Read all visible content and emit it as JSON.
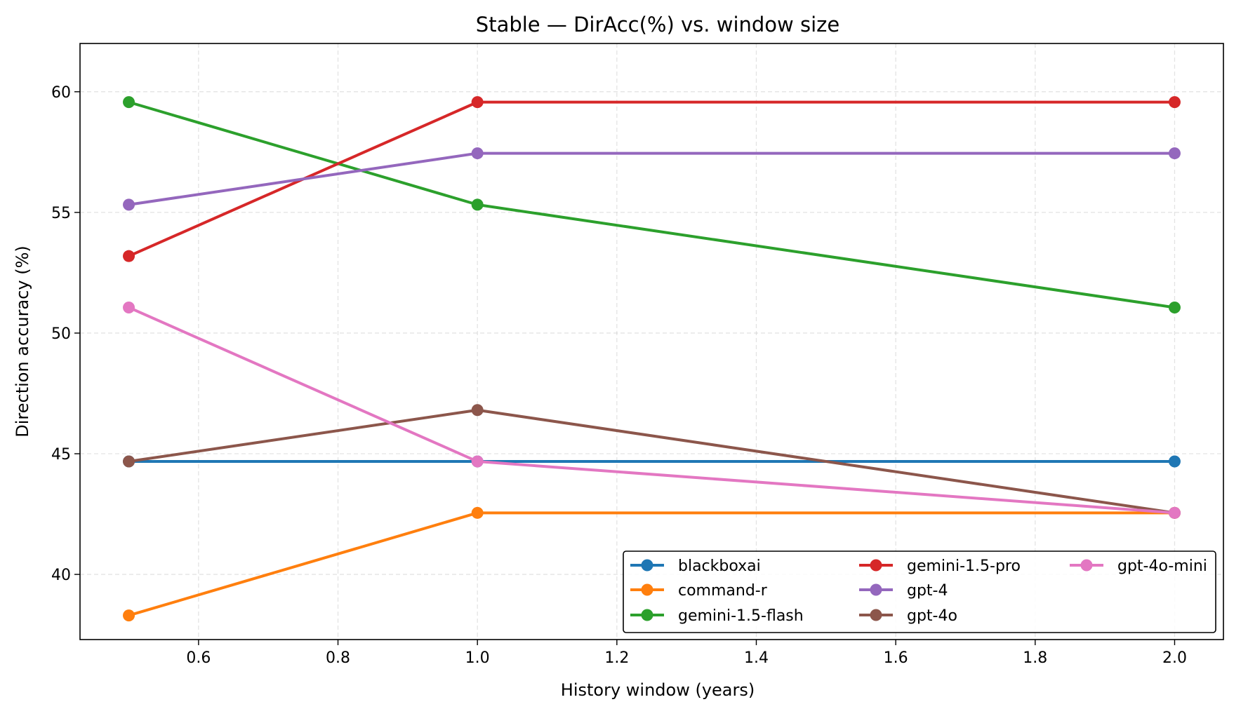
{
  "chart_data": {
    "type": "line",
    "title": "Stable — DirAcc(%) vs. window size",
    "xlabel": "History window (years)",
    "ylabel": "Direction accuracy (%)",
    "x": [
      0.5,
      1.0,
      2.0
    ],
    "xlim": [
      0.43,
      2.07
    ],
    "ylim": [
      37.3,
      62.0
    ],
    "xticks": [
      0.6,
      0.8,
      1.0,
      1.2,
      1.4,
      1.6,
      1.8,
      2.0
    ],
    "xtick_labels": [
      "0.6",
      "0.8",
      "1.0",
      "1.2",
      "1.4",
      "1.6",
      "1.8",
      "2.0"
    ],
    "yticks": [
      40,
      45,
      50,
      55,
      60
    ],
    "ytick_labels": [
      "40",
      "45",
      "50",
      "55",
      "60"
    ],
    "grid": true,
    "legend_position": "bottom-right",
    "legend_columns": 3,
    "series": [
      {
        "name": "blackboxai",
        "color": "#1f77b4",
        "values": [
          44.68,
          44.68,
          44.68
        ]
      },
      {
        "name": "command-r",
        "color": "#ff7f0e",
        "values": [
          38.3,
          42.55,
          42.55
        ]
      },
      {
        "name": "gemini-1.5-flash",
        "color": "#2ca02c",
        "values": [
          59.57,
          55.32,
          51.06
        ]
      },
      {
        "name": "gemini-1.5-pro",
        "color": "#d62728",
        "values": [
          53.19,
          59.57,
          59.57
        ]
      },
      {
        "name": "gpt-4",
        "color": "#9467bd",
        "values": [
          55.32,
          57.45,
          57.45
        ]
      },
      {
        "name": "gpt-4o",
        "color": "#8c564b",
        "values": [
          44.68,
          46.81,
          42.55
        ]
      },
      {
        "name": "gpt-4o-mini",
        "color": "#e377c2",
        "values": [
          51.06,
          44.68,
          42.55
        ]
      }
    ]
  }
}
